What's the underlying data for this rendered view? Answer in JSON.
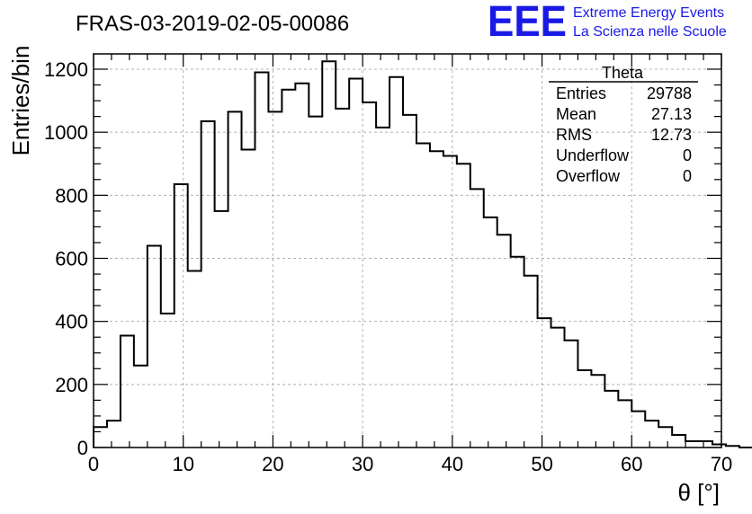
{
  "title": "FRAS-03-2019-02-05-00086",
  "logo": {
    "letters": "EEE",
    "line1": "Extreme Energy Events",
    "line2": "La Scienza nelle Scuole"
  },
  "stats": {
    "name": "Theta",
    "rows": [
      {
        "label": "Entries",
        "value": "29788"
      },
      {
        "label": "Mean",
        "value": "27.13"
      },
      {
        "label": "RMS",
        "value": "12.73"
      },
      {
        "label": "Underflow",
        "value": "0"
      },
      {
        "label": "Overflow",
        "value": "0"
      }
    ]
  },
  "colors": {
    "logo": "#1a1ae6",
    "line": "#000000",
    "grid": "#b0b0b0"
  },
  "chart_data": {
    "type": "bar",
    "style": "step-histogram",
    "xlabel": "θ [°]",
    "ylabel": "Entries/bin",
    "xlim": [
      0,
      70
    ],
    "ylim": [
      0,
      1200
    ],
    "bin_width": 1.5,
    "x_start": 0,
    "xticks": [
      0,
      10,
      20,
      30,
      40,
      50,
      60,
      70
    ],
    "yticks": [
      0,
      200,
      400,
      600,
      800,
      1000,
      1200
    ],
    "grid": true,
    "values": [
      65,
      85,
      355,
      260,
      640,
      425,
      835,
      560,
      1035,
      750,
      1065,
      945,
      1190,
      1065,
      1135,
      1155,
      1050,
      1225,
      1075,
      1170,
      1095,
      1015,
      1175,
      1055,
      965,
      940,
      925,
      900,
      820,
      730,
      675,
      605,
      545,
      410,
      380,
      340,
      245,
      230,
      180,
      150,
      115,
      85,
      65,
      40,
      20,
      20,
      10,
      5,
      0
    ]
  }
}
